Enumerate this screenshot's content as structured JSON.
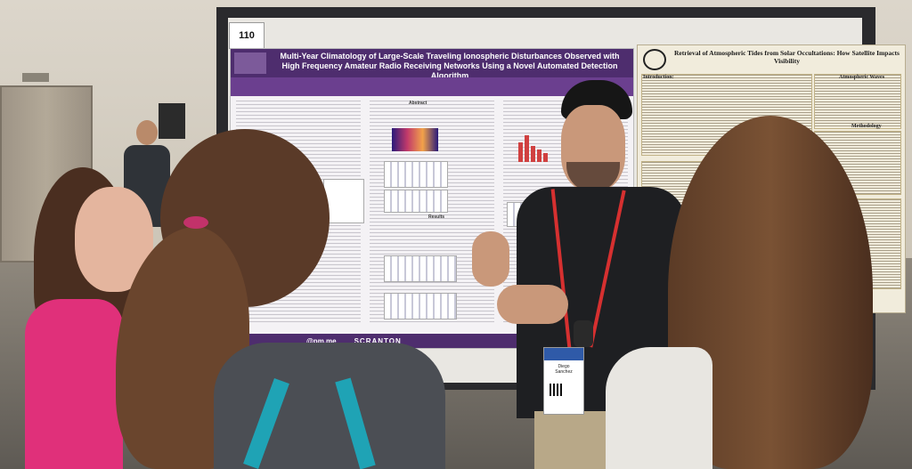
{
  "board": {
    "number": "110"
  },
  "poster_main": {
    "title": "Multi-Year Climatology of Large-Scale Traveling Ionospheric Disturbances Observed with High Frequency Amateur Radio Receiving Networks Using a Novel Automated Detection Algorithm",
    "email_fragment": "@pm.me",
    "footer_logo": "SCRANTON",
    "section_abstract": "Abstract",
    "section_results": "Results",
    "colors": {
      "header": "#4e2d6e",
      "band": "#6b3f8f"
    }
  },
  "poster_right": {
    "title": "Retrieval of Atmospheric Tides from Solar Occultations: How Satellite Impacts Visibility",
    "section_introduction": "Introduction:",
    "section_atmospheric": "Atmospheric Waves",
    "section_methodology": "Methodology"
  },
  "badge": {
    "line1": "Diego",
    "line2": "Sanchez",
    "color": "#2f5aa8"
  }
}
